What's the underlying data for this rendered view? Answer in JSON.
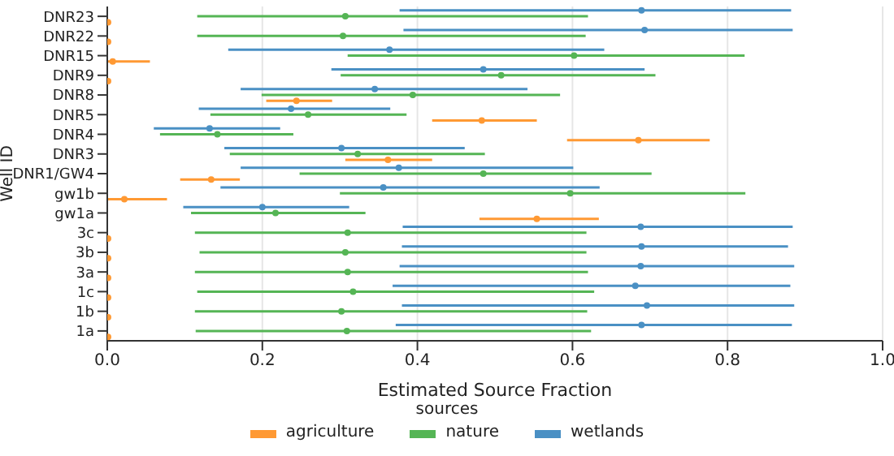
{
  "chart_data": {
    "type": "scatter",
    "orientation": "horizontal",
    "xlabel": "Estimated Source Fraction",
    "ylabel": "Well ID",
    "legend_title": "sources",
    "legend": "bottom",
    "grid": "x",
    "marker": "circle",
    "categories": [
      "DNR23",
      "DNR22",
      "DNR15",
      "DNR9",
      "DNR8",
      "DNR5",
      "DNR4",
      "DNR3",
      "DNR1/GW4",
      "gw1b",
      "gw1a",
      "3c",
      "3b",
      "3a",
      "1c",
      "1b",
      "1a"
    ],
    "xlim": [
      0,
      1
    ],
    "xticks": [
      {
        "value": 0,
        "label": "0.0"
      },
      0.2,
      0.4,
      0.6,
      0.8,
      {
        "value": 1,
        "label": "1.0"
      }
    ],
    "series": [
      {
        "name": "agriculture",
        "color": "#ff9933",
        "values": [
          0.001,
          0.001,
          0.007,
          0.001,
          0.244,
          0.483,
          0.685,
          0.362,
          0.134,
          0.022,
          0.554,
          0.001,
          0.001,
          0.001,
          0.001,
          0.001,
          0.001
        ],
        "errors": [
          [
            0,
            0.003
          ],
          [
            0,
            0.003
          ],
          [
            0.001,
            0.055
          ],
          [
            0,
            0.003
          ],
          [
            0.205,
            0.29
          ],
          [
            0.419,
            0.554
          ],
          [
            0.593,
            0.777
          ],
          [
            0.307,
            0.419
          ],
          [
            0.094,
            0.171
          ],
          [
            0.001,
            0.077
          ],
          [
            0.48,
            0.634
          ],
          [
            0,
            0.003
          ],
          [
            0,
            0.003
          ],
          [
            0,
            0.003
          ],
          [
            0,
            0.003
          ],
          [
            0,
            0.003
          ],
          [
            0,
            0.003
          ]
        ]
      },
      {
        "name": "nature",
        "color": "#55b555",
        "values": [
          0.307,
          0.304,
          0.602,
          0.508,
          0.394,
          0.259,
          0.142,
          0.323,
          0.485,
          0.597,
          0.217,
          0.31,
          0.307,
          0.31,
          0.317,
          0.302,
          0.309
        ],
        "errors": [
          [
            0.116,
            0.62
          ],
          [
            0.116,
            0.617
          ],
          [
            0.31,
            0.822
          ],
          [
            0.301,
            0.707
          ],
          [
            0.199,
            0.584
          ],
          [
            0.133,
            0.386
          ],
          [
            0.068,
            0.24
          ],
          [
            0.158,
            0.487
          ],
          [
            0.248,
            0.702
          ],
          [
            0.3,
            0.823
          ],
          [
            0.108,
            0.333
          ],
          [
            0.113,
            0.618
          ],
          [
            0.119,
            0.618
          ],
          [
            0.113,
            0.62
          ],
          [
            0.116,
            0.628
          ],
          [
            0.113,
            0.619
          ],
          [
            0.114,
            0.624
          ]
        ]
      },
      {
        "name": "wetlands",
        "color": "#4a90c4",
        "values": [
          0.689,
          0.693,
          0.364,
          0.485,
          0.345,
          0.237,
          0.132,
          0.302,
          0.376,
          0.356,
          0.2,
          0.688,
          0.689,
          0.688,
          0.681,
          0.696,
          0.689
        ],
        "errors": [
          [
            0.377,
            0.882
          ],
          [
            0.382,
            0.884
          ],
          [
            0.156,
            0.641
          ],
          [
            0.289,
            0.693
          ],
          [
            0.172,
            0.542
          ],
          [
            0.118,
            0.365
          ],
          [
            0.06,
            0.223
          ],
          [
            0.151,
            0.461
          ],
          [
            0.172,
            0.601
          ],
          [
            0.146,
            0.635
          ],
          [
            0.098,
            0.312
          ],
          [
            0.381,
            0.884
          ],
          [
            0.38,
            0.878
          ],
          [
            0.377,
            0.886
          ],
          [
            0.368,
            0.881
          ],
          [
            0.38,
            0.886
          ],
          [
            0.372,
            0.883
          ]
        ]
      }
    ]
  }
}
